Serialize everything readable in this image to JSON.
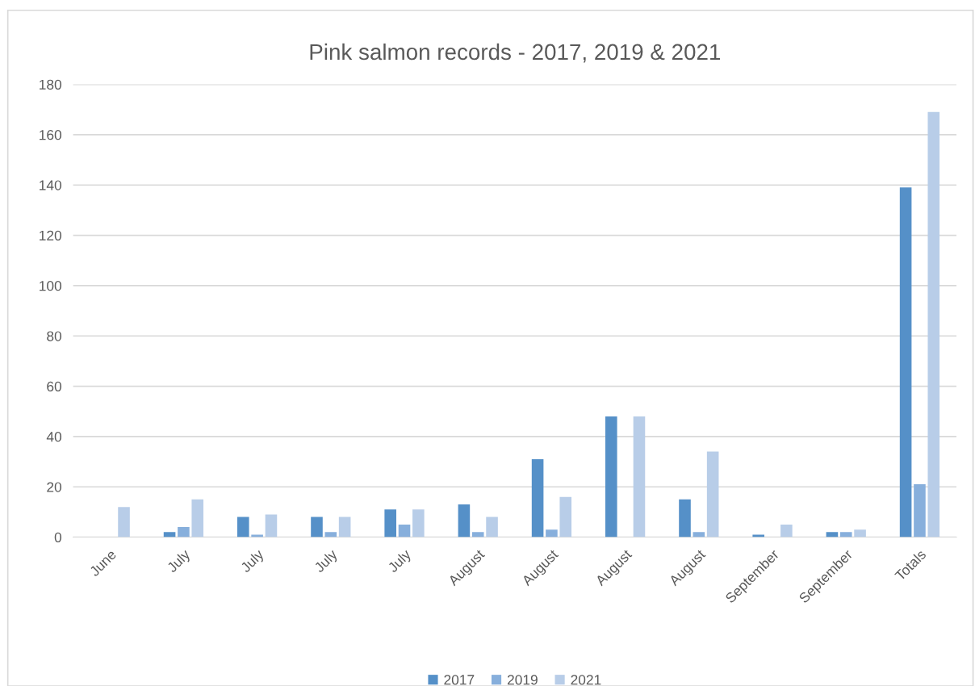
{
  "chart_data": {
    "type": "bar",
    "title": "Pink salmon records - 2017, 2019 & 2021",
    "categories": [
      "June",
      "July",
      "July",
      "July",
      "July",
      "August",
      "August",
      "August",
      "August",
      "September",
      "September",
      "Totals"
    ],
    "series": [
      {
        "name": "2017",
        "color": "#5590c8",
        "values": [
          0,
          2,
          8,
          8,
          11,
          13,
          31,
          48,
          15,
          1,
          2,
          139
        ]
      },
      {
        "name": "2019",
        "color": "#87afdc",
        "values": [
          0,
          4,
          1,
          2,
          5,
          2,
          3,
          0,
          2,
          0,
          2,
          21
        ]
      },
      {
        "name": "2021",
        "color": "#b8cde8",
        "values": [
          12,
          15,
          9,
          8,
          11,
          8,
          16,
          48,
          34,
          5,
          3,
          169
        ]
      }
    ],
    "ylim": [
      0,
      180
    ],
    "yticks": [
      0,
      20,
      40,
      60,
      80,
      100,
      120,
      140,
      160,
      180
    ],
    "grid": "y",
    "legend": "bottom"
  }
}
